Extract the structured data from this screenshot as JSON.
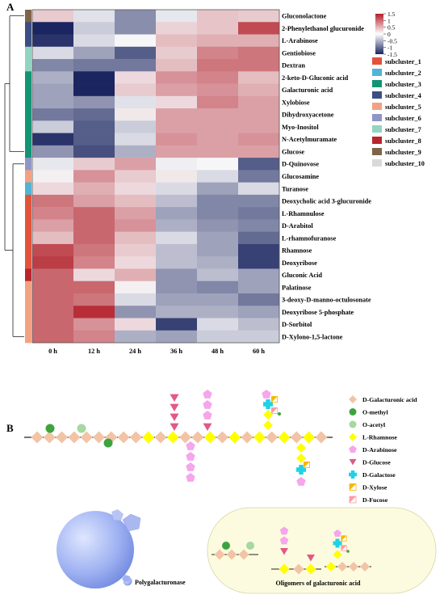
{
  "panel_a": {
    "label": "A",
    "columns": [
      "0 h",
      "12 h",
      "24 h",
      "36 h",
      "48 h",
      "60 h"
    ],
    "scale": {
      "ticks": [
        "1.5",
        "1",
        "0.5",
        "0",
        "-0.5",
        "-1",
        "-1.5"
      ],
      "min": -1.5,
      "max": 1.5
    },
    "rows": [
      {
        "name": "Gluconolactone",
        "sub": 9,
        "values": [
          0.3,
          -0.15,
          -0.75,
          -0.1,
          0.35,
          0.3
        ]
      },
      {
        "name": "2-Phenylethanol glucuronide",
        "sub": 4,
        "values": [
          -1.5,
          -0.3,
          -0.75,
          0.25,
          0.35,
          1.2
        ]
      },
      {
        "name": "L-Arabinose",
        "sub": 4,
        "values": [
          -1.4,
          -0.2,
          0.0,
          0.4,
          0.5,
          0.5
        ]
      },
      {
        "name": "Gentiobiose",
        "sub": 7,
        "values": [
          -0.2,
          -0.6,
          -1.1,
          0.3,
          0.8,
          0.9
        ]
      },
      {
        "name": "Dextran",
        "sub": 7,
        "values": [
          -0.8,
          -0.9,
          -0.9,
          0.4,
          0.9,
          0.9
        ]
      },
      {
        "name": "2-keto-D-Gluconic acid",
        "sub": 3,
        "values": [
          -0.5,
          -1.6,
          0.2,
          0.7,
          0.8,
          0.4
        ]
      },
      {
        "name": "Galacturonic acid",
        "sub": 3,
        "values": [
          -0.6,
          -1.6,
          0.3,
          0.6,
          0.7,
          0.5
        ]
      },
      {
        "name": "Xylobiose",
        "sub": 3,
        "values": [
          -0.6,
          -0.7,
          -0.15,
          0.2,
          0.8,
          0.6
        ]
      },
      {
        "name": "Dihydroxyacetone",
        "sub": 3,
        "values": [
          -0.9,
          -1.0,
          0.1,
          0.6,
          0.6,
          0.6
        ]
      },
      {
        "name": "Myo-Inositol",
        "sub": 3,
        "values": [
          -0.3,
          -1.1,
          -0.3,
          0.6,
          0.6,
          0.6
        ]
      },
      {
        "name": "N-Acetylmuramate",
        "sub": 3,
        "values": [
          -1.4,
          -1.1,
          -0.2,
          0.7,
          0.6,
          0.7
        ]
      },
      {
        "name": "Glucose",
        "sub": 3,
        "values": [
          -0.7,
          -1.2,
          -0.5,
          0.6,
          0.6,
          0.6
        ]
      },
      {
        "name": "D-Quinovose",
        "sub": 6,
        "values": [
          -0.1,
          0.3,
          0.6,
          -0.05,
          0.0,
          -1.1
        ]
      },
      {
        "name": "Glucosamine",
        "sub": 5,
        "values": [
          0.05,
          0.7,
          0.3,
          0.1,
          -0.2,
          -0.9
        ]
      },
      {
        "name": "Turanose",
        "sub": 2,
        "values": [
          0.2,
          0.5,
          0.2,
          -0.2,
          -0.6,
          -0.2
        ]
      },
      {
        "name": "Deoxycholic acid 3-glucuronide",
        "sub": 1,
        "values": [
          0.9,
          0.6,
          0.4,
          -0.4,
          -0.8,
          -0.8
        ]
      },
      {
        "name": "L-Rhamnulose",
        "sub": 1,
        "values": [
          0.8,
          1.0,
          0.6,
          -0.6,
          -0.8,
          -0.9
        ]
      },
      {
        "name": "D-Arabitol",
        "sub": 1,
        "values": [
          0.6,
          1.0,
          0.7,
          -0.5,
          -0.7,
          -0.8
        ]
      },
      {
        "name": "L-rhamnofuranose",
        "sub": 1,
        "values": [
          0.4,
          1.0,
          0.4,
          -0.2,
          -0.6,
          -1.0
        ]
      },
      {
        "name": "Rhamnose",
        "sub": 1,
        "values": [
          1.2,
          0.9,
          0.3,
          -0.4,
          -0.6,
          -1.3
        ]
      },
      {
        "name": "Deoxyribose",
        "sub": 1,
        "values": [
          1.3,
          0.8,
          0.2,
          -0.4,
          -0.5,
          -1.3
        ]
      },
      {
        "name": "Gluconic Acid",
        "sub": 8,
        "values": [
          1.0,
          0.2,
          0.5,
          -0.7,
          -0.4,
          -0.6
        ]
      },
      {
        "name": "Palatinose",
        "sub": 5,
        "values": [
          1.0,
          1.0,
          0.05,
          -0.7,
          -0.8,
          -0.6
        ]
      },
      {
        "name": "3-deoxy-D-manno-octulosonate",
        "sub": 5,
        "values": [
          1.0,
          0.9,
          -0.2,
          -0.6,
          -0.6,
          -0.9
        ]
      },
      {
        "name": "Deoxyribose 5-phosphate",
        "sub": 5,
        "values": [
          1.0,
          1.4,
          -0.7,
          -0.5,
          -0.5,
          -0.6
        ]
      },
      {
        "name": "D-Sorbitol",
        "sub": 5,
        "values": [
          1.0,
          0.7,
          0.2,
          -1.3,
          -0.2,
          -0.4
        ]
      },
      {
        "name": "D-Xylono-1,5-lactone",
        "sub": 5,
        "values": [
          1.0,
          0.8,
          -0.5,
          -0.6,
          -0.3,
          -0.3
        ]
      }
    ],
    "subclusters": [
      {
        "label": "subcluster_1",
        "color": "#e2533b"
      },
      {
        "label": "subcluster_2",
        "color": "#4fb5d6"
      },
      {
        "label": "subcluster_3",
        "color": "#139474"
      },
      {
        "label": "subcluster_4",
        "color": "#3c4f83"
      },
      {
        "label": "subcluster_5",
        "color": "#f2a283"
      },
      {
        "label": "subcluster_6",
        "color": "#8f95c6"
      },
      {
        "label": "subcluster_7",
        "color": "#93d4c0"
      },
      {
        "label": "subcluster_8",
        "color": "#b8252c"
      },
      {
        "label": "subcluster_9",
        "color": "#7e6547"
      },
      {
        "label": "subcluster_10",
        "color": "#d9d9d9"
      }
    ]
  },
  "panel_b": {
    "label": "B",
    "legend": [
      {
        "label": "D-Galacturonic acid",
        "icon": "diamond",
        "color": "#f2c4a5"
      },
      {
        "label": "O-methyl",
        "icon": "circle",
        "color": "#3ea33e"
      },
      {
        "label": "O-acetyl",
        "icon": "circle",
        "color": "#a6d8a0"
      },
      {
        "label": "L-Rhamnose",
        "icon": "diamond",
        "color": "#ffff00"
      },
      {
        "label": "D-Arabinose",
        "icon": "pentagon",
        "color": "#f5a6ec"
      },
      {
        "label": "D-Glucose",
        "icon": "triangle-down",
        "color": "#e15986"
      },
      {
        "label": "D-Galactose",
        "icon": "cross",
        "color": "#1fd2e6"
      },
      {
        "label": "D-Xylose",
        "icon": "half-square",
        "color": "#f5b800"
      },
      {
        "label": "D-Fucose",
        "icon": "half-square",
        "color": "#ff9aa2"
      }
    ],
    "enzyme_label": "Polygalacturonase",
    "oligomer_label": "Oligomers of galacturonic acid"
  }
}
